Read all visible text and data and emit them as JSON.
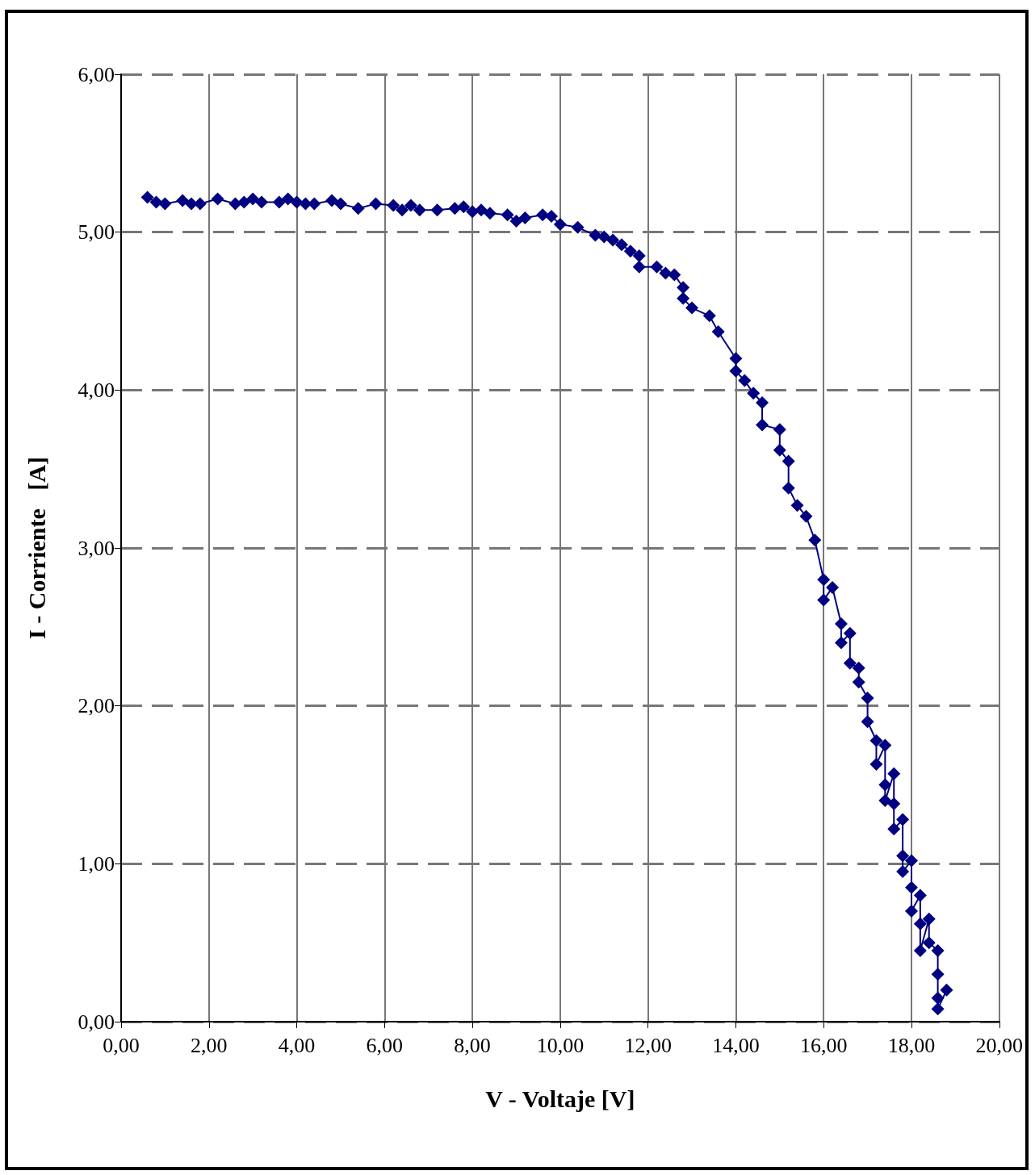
{
  "chart_data": {
    "type": "line",
    "xlabel": "V - Voltaje [V]",
    "ylabel": "I - Corriente   [A]",
    "xlim": [
      0,
      20
    ],
    "ylim": [
      0,
      6
    ],
    "xticks": [
      {
        "value": 0,
        "label": "0,00"
      },
      {
        "value": 2,
        "label": "2,00"
      },
      {
        "value": 4,
        "label": "4,00"
      },
      {
        "value": 6,
        "label": "6,00"
      },
      {
        "value": 8,
        "label": "8,00"
      },
      {
        "value": 10,
        "label": "10,00"
      },
      {
        "value": 12,
        "label": "12,00"
      },
      {
        "value": 14,
        "label": "14,00"
      },
      {
        "value": 16,
        "label": "16,00"
      },
      {
        "value": 18,
        "label": "18,00"
      },
      {
        "value": 20,
        "label": "20,00"
      }
    ],
    "yticks": [
      {
        "value": 0,
        "label": "0,00"
      },
      {
        "value": 1,
        "label": "1,00"
      },
      {
        "value": 2,
        "label": "2,00"
      },
      {
        "value": 3,
        "label": "3,00"
      },
      {
        "value": 4,
        "label": "4,00"
      },
      {
        "value": 5,
        "label": "5,00"
      },
      {
        "value": 6,
        "label": "6,00"
      }
    ],
    "grid": true,
    "marker": "diamond",
    "line_style": "solid",
    "series": [
      {
        "color": "#000080",
        "x": [
          0.6,
          0.8,
          1.0,
          1.4,
          1.6,
          1.8,
          2.2,
          2.6,
          2.8,
          3.0,
          3.2,
          3.6,
          3.8,
          4.0,
          4.2,
          4.4,
          4.8,
          5.0,
          5.4,
          5.8,
          6.2,
          6.4,
          6.6,
          6.8,
          7.2,
          7.6,
          7.8,
          8.0,
          8.2,
          8.4,
          8.8,
          9.0,
          9.2,
          9.6,
          9.8,
          10.0,
          10.4,
          10.8,
          11.0,
          11.2,
          11.4,
          11.6,
          11.8,
          11.8,
          12.2,
          12.4,
          12.6,
          12.8,
          12.8,
          13.0,
          13.4,
          13.6,
          14.0,
          14.0,
          14.2,
          14.4,
          14.6,
          14.6,
          15.0,
          15.0,
          15.2,
          15.2,
          15.4,
          15.6,
          15.8,
          16.0,
          16.0,
          16.2,
          16.4,
          16.4,
          16.6,
          16.6,
          16.8,
          16.8,
          17.0,
          17.0,
          17.2,
          17.2,
          17.4,
          17.4,
          17.4,
          17.6,
          17.6,
          17.6,
          17.8,
          17.8,
          17.8,
          18.0,
          18.0,
          18.0,
          18.2,
          18.2,
          18.2,
          18.4,
          18.4,
          18.6,
          18.6,
          18.6,
          18.6,
          18.8
        ],
        "values": [
          5.22,
          5.19,
          5.18,
          5.2,
          5.18,
          5.18,
          5.21,
          5.18,
          5.19,
          5.21,
          5.19,
          5.19,
          5.21,
          5.19,
          5.18,
          5.18,
          5.2,
          5.18,
          5.15,
          5.18,
          5.17,
          5.14,
          5.17,
          5.14,
          5.14,
          5.15,
          5.16,
          5.13,
          5.14,
          5.12,
          5.11,
          5.07,
          5.09,
          5.11,
          5.1,
          5.05,
          5.03,
          4.98,
          4.97,
          4.95,
          4.92,
          4.88,
          4.85,
          4.78,
          4.78,
          4.74,
          4.73,
          4.65,
          4.58,
          4.52,
          4.47,
          4.37,
          4.2,
          4.12,
          4.06,
          3.98,
          3.92,
          3.78,
          3.75,
          3.62,
          3.55,
          3.38,
          3.27,
          3.2,
          3.05,
          2.8,
          2.67,
          2.75,
          2.52,
          2.4,
          2.46,
          2.27,
          2.24,
          2.15,
          2.05,
          1.9,
          1.78,
          1.63,
          1.75,
          1.5,
          1.4,
          1.57,
          1.38,
          1.22,
          1.28,
          1.05,
          0.95,
          1.02,
          0.85,
          0.7,
          0.8,
          0.62,
          0.45,
          0.65,
          0.5,
          0.45,
          0.3,
          0.15,
          0.08,
          0.2
        ]
      }
    ]
  }
}
